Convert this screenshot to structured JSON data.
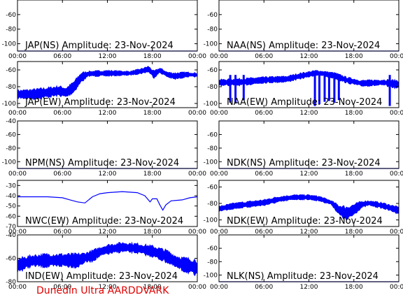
{
  "footer_text": "Dunedin Ultra AARDDVARK",
  "trace_color": "#0000ff",
  "chart_data": [
    {
      "type": "line",
      "title": "JAP(NS) Amplitude: 23-Nov-2024",
      "xticks": [
        "00:00",
        "06:00",
        "12:00",
        "18:00",
        "00:00"
      ],
      "xlim": [
        0,
        24
      ],
      "ylim": [
        -110,
        -40
      ],
      "yticks": [
        -60,
        -80,
        -100
      ],
      "series": [
        {
          "values": [
            [
              0,
              -111
            ],
            [
              24,
              -111
            ]
          ]
        }
      ]
    },
    {
      "type": "line",
      "title": "NAA(NS) Amplitude: 23-Nov-2024",
      "xticks": [
        "00:00",
        "06:00",
        "12:00",
        "18:00",
        "00:00"
      ],
      "xlim": [
        0,
        24
      ],
      "ylim": [
        -110,
        -40
      ],
      "yticks": [
        -60,
        -80,
        -100
      ],
      "series": [
        {
          "values": [
            [
              0,
              -111
            ],
            [
              24,
              -111
            ]
          ]
        }
      ]
    },
    {
      "type": "line",
      "title": "JAP(EW) Amplitude: 23-Nov-2024",
      "xticks": [
        "00:00",
        "06:00",
        "12:00",
        "18:00",
        "00:00"
      ],
      "xlim": [
        0,
        24
      ],
      "ylim": [
        -105,
        -50
      ],
      "yticks": [
        -60,
        -80,
        -100
      ],
      "series": [
        {
          "band": true,
          "values": [
            [
              0,
              -85,
              -93
            ],
            [
              2,
              -84,
              -94
            ],
            [
              4,
              -82,
              -92
            ],
            [
              5.5,
              -80,
              -90
            ],
            [
              6.5,
              -82,
              -92
            ],
            [
              7.5,
              -75,
              -86
            ],
            [
              8.5,
              -64,
              -74
            ],
            [
              9.5,
              -62,
              -67
            ],
            [
              12,
              -61,
              -67
            ],
            [
              15,
              -62,
              -66
            ],
            [
              16.5,
              -59,
              -64
            ],
            [
              17.5,
              -56,
              -62
            ],
            [
              18.2,
              -62,
              -69
            ],
            [
              19,
              -58,
              -63
            ],
            [
              20,
              -63,
              -68
            ],
            [
              21,
              -64,
              -71
            ],
            [
              22.5,
              -63,
              -68
            ],
            [
              24,
              -64,
              -68
            ]
          ]
        }
      ]
    },
    {
      "type": "line",
      "title": "NAA(EW) Amplitude: 23-Nov-2024",
      "xticks": [
        "00:00",
        "06:00",
        "12:00",
        "18:00",
        "00:00"
      ],
      "xlim": [
        0,
        24
      ],
      "ylim": [
        -105,
        -50
      ],
      "yticks": [
        -60,
        -80,
        -100
      ],
      "series": [
        {
          "band": true,
          "values": [
            [
              0,
              -72,
              -78
            ],
            [
              3,
              -71,
              -78
            ],
            [
              6,
              -69,
              -75
            ],
            [
              9,
              -68,
              -74
            ],
            [
              11,
              -64,
              -70
            ],
            [
              13,
              -61,
              -66
            ],
            [
              14,
              -62,
              -67
            ],
            [
              15.5,
              -64,
              -70
            ],
            [
              17,
              -69,
              -75
            ],
            [
              19,
              -73,
              -79
            ],
            [
              22,
              -72,
              -78
            ],
            [
              24,
              -73,
              -82
            ]
          ]
        }
      ],
      "dips": [
        [
          1.5,
          -99
        ],
        [
          2.2,
          -100
        ],
        [
          3.3,
          -96
        ],
        [
          12.8,
          -103
        ],
        [
          13.4,
          -101
        ],
        [
          14.1,
          -98
        ],
        [
          14.7,
          -97
        ],
        [
          15.4,
          -99
        ],
        [
          16.0,
          -96
        ],
        [
          22.8,
          -103
        ]
      ]
    },
    {
      "type": "line",
      "title": "NPM(NS) Amplitude: 23-Nov-2024",
      "xticks": [
        "00:00",
        "06:00",
        "12:00",
        "18:00",
        "00:00"
      ],
      "xlim": [
        0,
        24
      ],
      "ylim": [
        -110,
        -40
      ],
      "yticks": [
        -40,
        -60,
        -80,
        -100
      ],
      "series": [
        {
          "values": [
            [
              0,
              -111
            ],
            [
              24,
              -111
            ]
          ]
        }
      ]
    },
    {
      "type": "line",
      "title": "NDK(NS) Amplitude: 23-Nov-2024",
      "xticks": [
        "00:00",
        "06:00",
        "12:00",
        "18:00",
        "00:00"
      ],
      "xlim": [
        0,
        24
      ],
      "ylim": [
        -110,
        -40
      ],
      "yticks": [
        -60,
        -80,
        -100
      ],
      "series": [
        {
          "values": [
            [
              0,
              -111
            ],
            [
              24,
              -111
            ]
          ]
        }
      ]
    },
    {
      "type": "line",
      "title": "NWC(EW) Amplitude: 23-Nov-2024",
      "xticks": [
        "00:00",
        "06:00",
        "12:00",
        "18:00",
        "00:00"
      ],
      "xlim": [
        0,
        24
      ],
      "ylim": [
        -70,
        -25
      ],
      "yticks": [
        -30,
        -40,
        -50,
        -60,
        -70
      ],
      "series": [
        {
          "values": [
            [
              0,
              -41
            ],
            [
              4,
              -41
            ],
            [
              6,
              -42
            ],
            [
              7,
              -44
            ],
            [
              8,
              -46
            ],
            [
              9,
              -47
            ],
            [
              10,
              -41
            ],
            [
              11,
              -38
            ],
            [
              12,
              -37
            ],
            [
              14,
              -36
            ],
            [
              16,
              -37
            ],
            [
              17,
              -40
            ],
            [
              17.7,
              -46
            ],
            [
              18,
              -43
            ],
            [
              18.6,
              -43
            ],
            [
              19,
              -49
            ],
            [
              19.4,
              -54
            ],
            [
              19.8,
              -49
            ],
            [
              20.5,
              -45
            ],
            [
              22,
              -44
            ],
            [
              23,
              -42
            ],
            [
              24,
              -41
            ]
          ]
        }
      ]
    },
    {
      "type": "line",
      "title": "NDK(EW) Amplitude: 23-Nov-2024",
      "xticks": [
        "00:00",
        "06:00",
        "12:00",
        "18:00",
        "00:00"
      ],
      "xlim": [
        0,
        24
      ],
      "ylim": [
        -108,
        -52
      ],
      "yticks": [
        -60,
        -80,
        -100
      ],
      "series": [
        {
          "band": true,
          "values": [
            [
              0,
              -84,
              -89
            ],
            [
              2,
              -80,
              -86
            ],
            [
              4,
              -78,
              -84
            ],
            [
              6,
              -76,
              -82
            ],
            [
              8,
              -72,
              -78
            ],
            [
              10,
              -70,
              -75
            ],
            [
              12,
              -70,
              -75
            ],
            [
              13.5,
              -72,
              -77
            ],
            [
              15,
              -77,
              -81
            ],
            [
              16,
              -83,
              -93
            ],
            [
              17,
              -85,
              -100
            ],
            [
              18,
              -82,
              -93
            ],
            [
              19,
              -78,
              -85
            ],
            [
              20,
              -77,
              -82
            ],
            [
              22,
              -80,
              -86
            ],
            [
              24,
              -85,
              -92
            ]
          ]
        }
      ]
    },
    {
      "type": "line",
      "title": "IND(EW) Amplitude: 23-Nov-2024",
      "xticks": [
        "00:00",
        "06:00",
        "12:00",
        "18:00",
        "00:00"
      ],
      "xlim": [
        0,
        24
      ],
      "ylim": [
        -80,
        -40
      ],
      "yticks": [
        -40,
        -60,
        -80
      ],
      "series": [
        {
          "band": true,
          "values": [
            [
              0,
              -61,
              -71
            ],
            [
              2,
              -58,
              -66
            ],
            [
              4,
              -57,
              -67
            ],
            [
              6,
              -57,
              -66
            ],
            [
              8,
              -57,
              -67
            ],
            [
              9,
              -56,
              -63
            ],
            [
              10,
              -54,
              -62
            ],
            [
              11,
              -51,
              -58
            ],
            [
              12,
              -49,
              -56
            ],
            [
              14,
              -47,
              -54
            ],
            [
              16,
              -48,
              -55
            ],
            [
              18,
              -50,
              -58
            ],
            [
              20,
              -54,
              -63
            ],
            [
              21,
              -58,
              -67
            ],
            [
              22,
              -60,
              -70
            ],
            [
              23,
              -61,
              -72
            ],
            [
              24,
              -62,
              -75
            ]
          ]
        }
      ]
    },
    {
      "type": "line",
      "title": "NLK(NS) Amplitude: 23-Nov-2024",
      "xticks": [
        "00:00",
        "06:00",
        "12:00",
        "18:00",
        "00:00"
      ],
      "xlim": [
        0,
        24
      ],
      "ylim": [
        -110,
        -40
      ],
      "yticks": [
        -60,
        -80,
        -100
      ],
      "series": [
        {
          "values": [
            [
              0,
              -111
            ],
            [
              24,
              -111
            ]
          ]
        }
      ]
    }
  ]
}
